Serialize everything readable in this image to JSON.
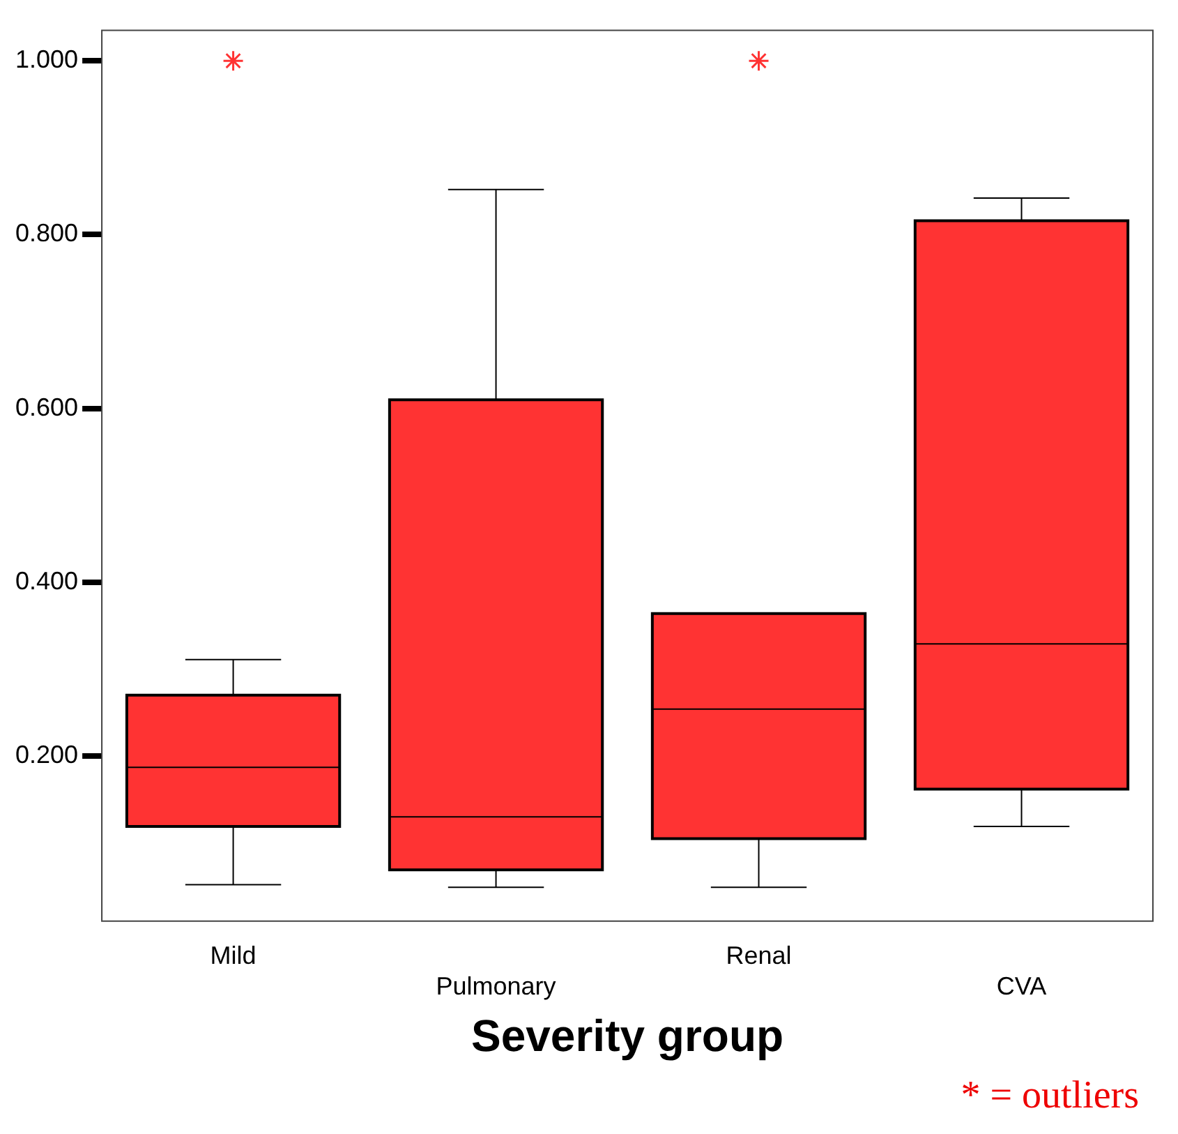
{
  "chart_data": {
    "type": "box",
    "xlabel": "Severity group",
    "categories": [
      "Mild",
      "Pulmonary",
      "Renal",
      "CVA"
    ],
    "color": "#ff3333",
    "boxes": [
      {
        "low": 0.052,
        "q1": 0.119,
        "median": 0.187,
        "q3": 0.27,
        "high": 0.311,
        "outliers": [
          1.0
        ]
      },
      {
        "low": 0.049,
        "q1": 0.069,
        "median": 0.13,
        "q3": 0.61,
        "high": 0.852
      },
      {
        "low": 0.049,
        "q1": 0.105,
        "median": 0.254,
        "q3": 0.364,
        "high": 0.364,
        "outliers": [
          1.0
        ]
      },
      {
        "low": 0.119,
        "q1": 0.162,
        "median": 0.329,
        "q3": 0.816,
        "high": 0.842
      }
    ],
    "ylim": [
      0.01,
      1.035
    ],
    "yticks": [
      {
        "value": 0.2,
        "label": "0.200"
      },
      {
        "value": 0.4,
        "label": "0.400"
      },
      {
        "value": 0.6,
        "label": "0.600"
      },
      {
        "value": 0.8,
        "label": "0.800"
      },
      {
        "value": 1.0,
        "label": "1.000"
      }
    ],
    "grid": false,
    "legend": false,
    "marker": "star",
    "annotations": [
      "* = outliers"
    ]
  }
}
